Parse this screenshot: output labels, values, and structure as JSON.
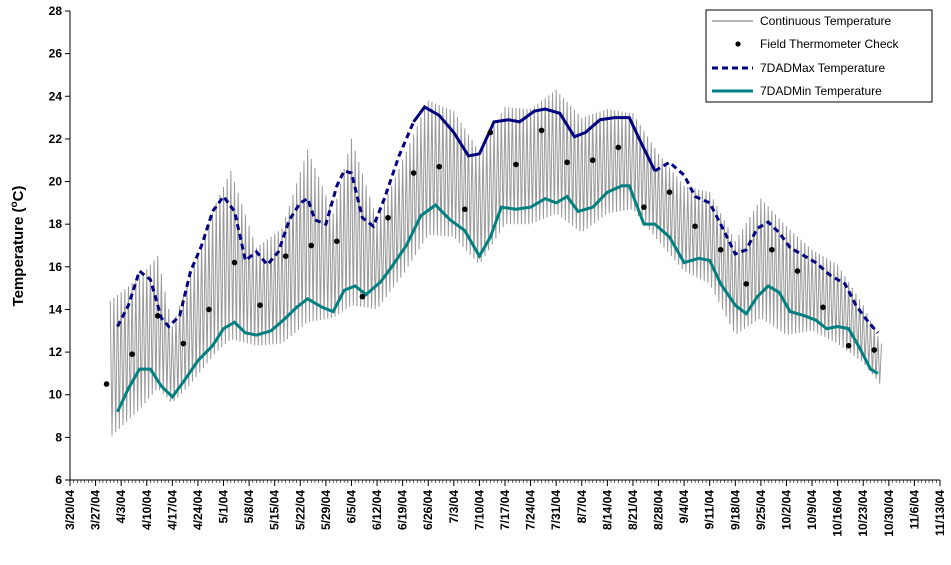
{
  "chart_data": {
    "type": "line",
    "ylabel": "Temperature (",
    "ylabel_sup": "o",
    "ylabel_tail": "C)",
    "ylim": [
      6,
      28
    ],
    "yticks": [
      6,
      8,
      10,
      12,
      14,
      16,
      18,
      20,
      22,
      24,
      26,
      28
    ],
    "x_start": "3/20/04",
    "x_end": "11/13/04",
    "xtick_labels": [
      "3/20/04",
      "3/27/04",
      "4/3/04",
      "4/10/04",
      "4/17/04",
      "4/24/04",
      "5/1/04",
      "5/8/04",
      "5/15/04",
      "5/22/04",
      "5/29/04",
      "6/5/04",
      "6/12/04",
      "6/19/04",
      "6/26/04",
      "7/3/04",
      "7/10/04",
      "7/17/04",
      "7/24/04",
      "7/31/04",
      "8/7/04",
      "8/14/04",
      "8/21/04",
      "8/28/04",
      "9/4/04",
      "9/11/04",
      "9/18/04",
      "9/25/04",
      "10/2/04",
      "10/9/04",
      "10/16/04",
      "10/23/04",
      "10/30/04",
      "11/6/04",
      "11/13/04"
    ],
    "grid": false,
    "legend_position": "top-right",
    "series": [
      {
        "name": "Continuous Temperature",
        "color": "#999999",
        "style": "thin-solid",
        "daily_min_max": true,
        "min_points": [
          [
            "3/31/04",
            8.0
          ],
          [
            "4/8/04",
            9.3
          ],
          [
            "4/13/04",
            10.3
          ],
          [
            "4/17/04",
            9.6
          ],
          [
            "4/22/04",
            10.5
          ],
          [
            "4/29/04",
            12.0
          ],
          [
            "5/3/04",
            12.6
          ],
          [
            "5/10/04",
            12.3
          ],
          [
            "5/17/04",
            12.4
          ],
          [
            "5/24/04",
            13.4
          ],
          [
            "5/31/04",
            13.6
          ],
          [
            "6/5/04",
            14.2
          ],
          [
            "6/12/04",
            14.0
          ],
          [
            "6/19/04",
            15.6
          ],
          [
            "6/26/04",
            17.5
          ],
          [
            "7/3/04",
            17.4
          ],
          [
            "7/10/04",
            16.1
          ],
          [
            "7/17/04",
            18.0
          ],
          [
            "7/24/04",
            18.0
          ],
          [
            "7/31/04",
            18.5
          ],
          [
            "8/7/04",
            17.6
          ],
          [
            "8/14/04",
            18.5
          ],
          [
            "8/21/04",
            18.7
          ],
          [
            "8/28/04",
            17.2
          ],
          [
            "9/4/04",
            15.8
          ],
          [
            "9/11/04",
            15.2
          ],
          [
            "9/18/04",
            12.8
          ],
          [
            "9/25/04",
            13.6
          ],
          [
            "10/2/04",
            12.8
          ],
          [
            "10/9/04",
            13.0
          ],
          [
            "10/16/04",
            12.4
          ],
          [
            "10/23/04",
            11.5
          ],
          [
            "10/28/04",
            10.4
          ]
        ],
        "max_points": [
          [
            "3/31/04",
            14.4
          ],
          [
            "4/8/04",
            15.5
          ],
          [
            "4/13/04",
            16.5
          ],
          [
            "4/17/04",
            13.2
          ],
          [
            "4/22/04",
            15.6
          ],
          [
            "4/29/04",
            19.0
          ],
          [
            "5/3/04",
            20.5
          ],
          [
            "5/10/04",
            16.9
          ],
          [
            "5/17/04",
            17.8
          ],
          [
            "5/24/04",
            21.5
          ],
          [
            "5/31/04",
            18.5
          ],
          [
            "6/5/04",
            22.0
          ],
          [
            "6/12/04",
            18.2
          ],
          [
            "6/19/04",
            21.0
          ],
          [
            "6/26/04",
            23.8
          ],
          [
            "7/3/04",
            23.3
          ],
          [
            "7/10/04",
            21.4
          ],
          [
            "7/17/04",
            23.5
          ],
          [
            "7/24/04",
            23.4
          ],
          [
            "7/31/04",
            24.3
          ],
          [
            "8/7/04",
            23.0
          ],
          [
            "8/14/04",
            23.4
          ],
          [
            "8/21/04",
            23.2
          ],
          [
            "8/28/04",
            21.3
          ],
          [
            "9/4/04",
            19.8
          ],
          [
            "9/11/04",
            19.5
          ],
          [
            "9/18/04",
            17.2
          ],
          [
            "9/25/04",
            19.2
          ],
          [
            "10/2/04",
            17.9
          ],
          [
            "10/9/04",
            16.8
          ],
          [
            "10/16/04",
            16.1
          ],
          [
            "10/23/04",
            14.2
          ],
          [
            "10/28/04",
            12.4
          ]
        ]
      },
      {
        "name": "Field Thermometer Check",
        "color": "#000000",
        "style": "dot",
        "points": [
          [
            "3/30/04",
            10.5
          ],
          [
            "4/6/04",
            11.9
          ],
          [
            "4/13/04",
            13.7
          ],
          [
            "4/20/04",
            12.4
          ],
          [
            "4/27/04",
            14.0
          ],
          [
            "5/4/04",
            16.2
          ],
          [
            "5/11/04",
            14.2
          ],
          [
            "5/18/04",
            16.5
          ],
          [
            "5/25/04",
            17.0
          ],
          [
            "6/1/04",
            17.2
          ],
          [
            "6/8/04",
            14.6
          ],
          [
            "6/15/04",
            18.3
          ],
          [
            "6/22/04",
            20.4
          ],
          [
            "6/29/04",
            20.7
          ],
          [
            "7/6/04",
            18.7
          ],
          [
            "7/13/04",
            22.3
          ],
          [
            "7/20/04",
            20.8
          ],
          [
            "7/27/04",
            22.4
          ],
          [
            "8/3/04",
            20.9
          ],
          [
            "8/10/04",
            21.0
          ],
          [
            "8/17/04",
            21.6
          ],
          [
            "8/24/04",
            18.8
          ],
          [
            "8/31/04",
            19.5
          ],
          [
            "9/7/04",
            17.9
          ],
          [
            "9/14/04",
            16.8
          ],
          [
            "9/21/04",
            15.2
          ],
          [
            "9/28/04",
            16.8
          ],
          [
            "10/5/04",
            15.8
          ],
          [
            "10/12/04",
            14.1
          ],
          [
            "10/19/04",
            12.3
          ],
          [
            "10/26/04",
            12.1
          ]
        ]
      },
      {
        "name": "7DADMax Temperature",
        "color": "#000080",
        "style": "dashed-then-solid",
        "points": [
          [
            "4/2/04",
            13.2
          ],
          [
            "4/5/04",
            14.2
          ],
          [
            "4/8/04",
            15.8
          ],
          [
            "4/11/04",
            15.4
          ],
          [
            "4/14/04",
            13.6
          ],
          [
            "4/16/04",
            13.2
          ],
          [
            "4/19/04",
            13.7
          ],
          [
            "4/22/04",
            15.8
          ],
          [
            "4/25/04",
            17.0
          ],
          [
            "4/28/04",
            18.6
          ],
          [
            "5/1/04",
            19.3
          ],
          [
            "5/4/04",
            18.6
          ],
          [
            "5/7/04",
            16.3
          ],
          [
            "5/10/04",
            16.7
          ],
          [
            "5/13/04",
            16.1
          ],
          [
            "5/16/04",
            16.7
          ],
          [
            "5/19/04",
            18.2
          ],
          [
            "5/22/04",
            19.0
          ],
          [
            "5/24/04",
            19.2
          ],
          [
            "5/26/04",
            18.2
          ],
          [
            "5/29/04",
            18.0
          ],
          [
            "6/1/04",
            19.8
          ],
          [
            "6/3/04",
            20.5
          ],
          [
            "6/5/04",
            20.4
          ],
          [
            "6/8/04",
            18.3
          ],
          [
            "6/11/04",
            17.9
          ],
          [
            "6/14/04",
            19.2
          ],
          [
            "6/18/04",
            21.2
          ],
          [
            "6/22/04",
            22.8
          ],
          [
            "6/25/04",
            23.5
          ],
          [
            "6/29/04",
            23.1
          ],
          [
            "7/3/04",
            22.3
          ],
          [
            "7/7/04",
            21.2
          ],
          [
            "7/10/04",
            21.3
          ],
          [
            "7/14/04",
            22.8
          ],
          [
            "7/18/04",
            22.9
          ],
          [
            "7/21/04",
            22.8
          ],
          [
            "7/25/04",
            23.3
          ],
          [
            "7/28/04",
            23.4
          ],
          [
            "8/1/04",
            23.2
          ],
          [
            "8/5/04",
            22.1
          ],
          [
            "8/8/04",
            22.3
          ],
          [
            "8/12/04",
            22.9
          ],
          [
            "8/16/04",
            23.0
          ],
          [
            "8/20/04",
            23.0
          ],
          [
            "8/23/04",
            21.9
          ],
          [
            "8/27/04",
            20.5
          ],
          [
            "8/31/04",
            20.9
          ],
          [
            "9/4/04",
            20.3
          ],
          [
            "9/7/04",
            19.3
          ],
          [
            "9/11/04",
            19.0
          ],
          [
            "9/14/04",
            18.0
          ],
          [
            "9/18/04",
            16.6
          ],
          [
            "9/21/04",
            16.8
          ],
          [
            "9/24/04",
            17.8
          ],
          [
            "9/27/04",
            18.1
          ],
          [
            "9/30/04",
            17.6
          ],
          [
            "10/3/04",
            16.9
          ],
          [
            "10/7/04",
            16.5
          ],
          [
            "10/10/04",
            16.2
          ],
          [
            "10/14/04",
            15.6
          ],
          [
            "10/18/04",
            15.2
          ],
          [
            "10/21/04",
            14.2
          ],
          [
            "10/24/04",
            13.5
          ],
          [
            "10/27/04",
            12.9
          ]
        ]
      },
      {
        "name": "7DADMin Temperature",
        "color": "#008080",
        "style": "solid",
        "points": [
          [
            "4/2/04",
            9.2
          ],
          [
            "4/5/04",
            10.3
          ],
          [
            "4/8/04",
            11.2
          ],
          [
            "4/11/04",
            11.2
          ],
          [
            "4/14/04",
            10.4
          ],
          [
            "4/17/04",
            9.9
          ],
          [
            "4/20/04",
            10.6
          ],
          [
            "4/24/04",
            11.6
          ],
          [
            "4/28/04",
            12.3
          ],
          [
            "5/1/04",
            13.1
          ],
          [
            "5/4/04",
            13.4
          ],
          [
            "5/7/04",
            12.9
          ],
          [
            "5/10/04",
            12.8
          ],
          [
            "5/14/04",
            13.0
          ],
          [
            "5/18/04",
            13.6
          ],
          [
            "5/21/04",
            14.1
          ],
          [
            "5/24/04",
            14.5
          ],
          [
            "5/28/04",
            14.1
          ],
          [
            "5/31/04",
            13.9
          ],
          [
            "6/3/04",
            14.9
          ],
          [
            "6/6/04",
            15.1
          ],
          [
            "6/9/04",
            14.7
          ],
          [
            "6/13/04",
            15.3
          ],
          [
            "6/16/04",
            16.0
          ],
          [
            "6/20/04",
            17.0
          ],
          [
            "6/24/04",
            18.4
          ],
          [
            "6/28/04",
            18.9
          ],
          [
            "7/2/04",
            18.2
          ],
          [
            "7/6/04",
            17.7
          ],
          [
            "7/10/04",
            16.5
          ],
          [
            "7/13/04",
            17.4
          ],
          [
            "7/16/04",
            18.8
          ],
          [
            "7/20/04",
            18.7
          ],
          [
            "7/24/04",
            18.8
          ],
          [
            "7/28/04",
            19.2
          ],
          [
            "7/31/04",
            19.0
          ],
          [
            "8/3/04",
            19.3
          ],
          [
            "8/6/04",
            18.6
          ],
          [
            "8/10/04",
            18.8
          ],
          [
            "8/14/04",
            19.5
          ],
          [
            "8/18/04",
            19.8
          ],
          [
            "8/20/04",
            19.8
          ],
          [
            "8/24/04",
            18.0
          ],
          [
            "8/27/04",
            18.0
          ],
          [
            "8/31/04",
            17.4
          ],
          [
            "9/4/04",
            16.2
          ],
          [
            "9/8/04",
            16.4
          ],
          [
            "9/11/04",
            16.3
          ],
          [
            "9/14/04",
            15.2
          ],
          [
            "9/18/04",
            14.2
          ],
          [
            "9/21/04",
            13.8
          ],
          [
            "9/24/04",
            14.6
          ],
          [
            "9/27/04",
            15.1
          ],
          [
            "9/30/04",
            14.8
          ],
          [
            "10/3/04",
            13.9
          ],
          [
            "10/7/04",
            13.7
          ],
          [
            "10/10/04",
            13.5
          ],
          [
            "10/13/04",
            13.1
          ],
          [
            "10/16/04",
            13.2
          ],
          [
            "10/19/04",
            13.1
          ],
          [
            "10/22/04",
            12.2
          ],
          [
            "10/25/04",
            11.2
          ],
          [
            "10/27/04",
            11.0
          ]
        ]
      }
    ]
  }
}
